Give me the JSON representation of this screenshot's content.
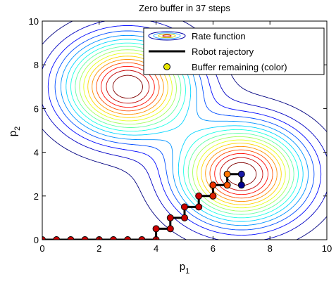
{
  "chart_data": {
    "type": "line",
    "title": "Zero buffer in 37 steps",
    "xlabel": {
      "base": "p",
      "sub": "1"
    },
    "ylabel": {
      "base": "p",
      "sub": "2"
    },
    "xlim": [
      0,
      10
    ],
    "ylim": [
      0,
      10
    ],
    "xticks": [
      "0",
      "2",
      "4",
      "6",
      "8",
      "10"
    ],
    "yticks": [
      "0",
      "2",
      "4",
      "6",
      "8",
      "10"
    ],
    "grid": false,
    "legend_position": "top-right",
    "legend": [
      {
        "label": "Rate function",
        "marker": "contour-ellipse"
      },
      {
        "label": "Robot rajectory",
        "marker": "line"
      },
      {
        "label": "Buffer remaining (color)",
        "marker": "dot",
        "color": "#e8e600"
      }
    ],
    "contour": {
      "peaks": [
        {
          "center": [
            3,
            7
          ],
          "amplitude": 1.0,
          "sigma": 1.5
        },
        {
          "center": [
            7,
            3
          ],
          "amplitude": 1.0,
          "sigma": 1.5
        }
      ],
      "levels": 16,
      "colormap": "jet"
    },
    "trajectory": {
      "line_color": "#000000",
      "points": [
        {
          "x": 0,
          "y": 0,
          "color": "#cc0000"
        },
        {
          "x": 0.5,
          "y": 0,
          "color": "#cc0000"
        },
        {
          "x": 1,
          "y": 0,
          "color": "#cc0000"
        },
        {
          "x": 1.5,
          "y": 0,
          "color": "#cc0000"
        },
        {
          "x": 2,
          "y": 0,
          "color": "#cc0000"
        },
        {
          "x": 2.5,
          "y": 0,
          "color": "#cc0000"
        },
        {
          "x": 3,
          "y": 0,
          "color": "#cc0000"
        },
        {
          "x": 3.5,
          "y": 0,
          "color": "#cc0000"
        },
        {
          "x": 4,
          "y": 0,
          "color": "#cc0000"
        },
        {
          "x": 4,
          "y": 0.5,
          "color": "#cc0000"
        },
        {
          "x": 4.5,
          "y": 0.5,
          "color": "#cc0000"
        },
        {
          "x": 4.5,
          "y": 1,
          "color": "#cc0000"
        },
        {
          "x": 5,
          "y": 1,
          "color": "#cc0000"
        },
        {
          "x": 5,
          "y": 1.5,
          "color": "#cc0000"
        },
        {
          "x": 5.5,
          "y": 1.5,
          "color": "#cc0000"
        },
        {
          "x": 5.5,
          "y": 2,
          "color": "#cc0000"
        },
        {
          "x": 6,
          "y": 2,
          "color": "#dd2200"
        },
        {
          "x": 6,
          "y": 2.5,
          "color": "#ee3300"
        },
        {
          "x": 6.5,
          "y": 2.5,
          "color": "#ff5500"
        },
        {
          "x": 6.5,
          "y": 3,
          "color": "#ff7700"
        },
        {
          "x": 7,
          "y": 3,
          "color": "#1a1aa8"
        },
        {
          "x": 7,
          "y": 2.5,
          "color": "#00008f"
        }
      ]
    }
  }
}
